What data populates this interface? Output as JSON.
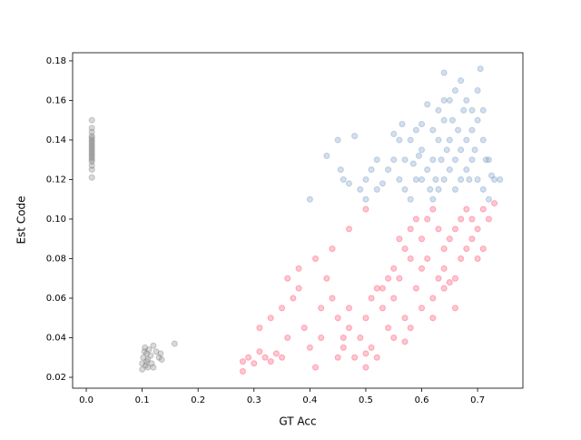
{
  "chart_data": {
    "type": "scatter",
    "xlabel": "GT Acc",
    "ylabel": "Est Code",
    "xlim": [
      -0.0244,
      0.781
    ],
    "ylim": [
      0.0145,
      0.1841
    ],
    "xticks": [
      {
        "value": 0,
        "label": "0.0"
      },
      0.1,
      0.2,
      0.3,
      0.4,
      0.5,
      0.6,
      0.7
    ],
    "yticks": [
      0.02,
      0.04,
      0.06,
      0.08,
      {
        "value": 0.1,
        "label": "0.10"
      },
      0.12,
      0.14,
      0.16,
      0.18
    ],
    "series": [
      {
        "color": "#808080",
        "x": [
          0.01,
          0.01,
          0.01,
          0.01,
          0.01,
          0.01,
          0.01,
          0.01,
          0.01,
          0.01,
          0.01,
          0.01,
          0.01,
          0.01,
          0.01,
          0.01,
          0.01,
          0.01,
          0.01,
          0.01,
          0.1,
          0.1,
          0.102,
          0.104,
          0.105,
          0.106,
          0.108,
          0.11,
          0.11,
          0.112,
          0.115,
          0.117,
          0.12,
          0.125,
          0.13,
          0.133,
          0.135,
          0.12,
          0.108,
          0.158
        ],
        "values": [
          0.121,
          0.125,
          0.127,
          0.129,
          0.13,
          0.131,
          0.132,
          0.133,
          0.134,
          0.135,
          0.136,
          0.137,
          0.138,
          0.139,
          0.14,
          0.141,
          0.142,
          0.144,
          0.146,
          0.15,
          0.024,
          0.027,
          0.03,
          0.033,
          0.035,
          0.026,
          0.032,
          0.029,
          0.025,
          0.034,
          0.031,
          0.027,
          0.036,
          0.033,
          0.03,
          0.032,
          0.029,
          0.025,
          0.028,
          0.037
        ]
      },
      {
        "color": "#6f96c5",
        "x": [
          0.62,
          0.63,
          0.64,
          0.65,
          0.66,
          0.67,
          0.68,
          0.69,
          0.7,
          0.71,
          0.62,
          0.63,
          0.64,
          0.65,
          0.66,
          0.67,
          0.68,
          0.69,
          0.7,
          0.71,
          0.62,
          0.63,
          0.64,
          0.65,
          0.66,
          0.67,
          0.68,
          0.69,
          0.7,
          0.71,
          0.72,
          0.72,
          0.73,
          0.74,
          0.705,
          0.64,
          0.61,
          0.6,
          0.6,
          0.61,
          0.58,
          0.57,
          0.56,
          0.57,
          0.58,
          0.59,
          0.55,
          0.56,
          0.59,
          0.6,
          0.5,
          0.51,
          0.52,
          0.5,
          0.53,
          0.49,
          0.54,
          0.52,
          0.46,
          0.43,
          0.45,
          0.47,
          0.48,
          0.4,
          0.455,
          0.55,
          0.565,
          0.655,
          0.665,
          0.675,
          0.685,
          0.695,
          0.715,
          0.725,
          0.615,
          0.625,
          0.635,
          0.645,
          0.585,
          0.595
        ],
        "values": [
          0.11,
          0.115,
          0.12,
          0.125,
          0.13,
          0.135,
          0.14,
          0.145,
          0.15,
          0.155,
          0.13,
          0.14,
          0.15,
          0.16,
          0.165,
          0.17,
          0.16,
          0.155,
          0.165,
          0.14,
          0.145,
          0.155,
          0.16,
          0.14,
          0.115,
          0.12,
          0.125,
          0.13,
          0.12,
          0.115,
          0.11,
          0.13,
          0.12,
          0.12,
          0.176,
          0.174,
          0.158,
          0.135,
          0.12,
          0.125,
          0.14,
          0.13,
          0.12,
          0.115,
          0.11,
          0.12,
          0.13,
          0.14,
          0.145,
          0.148,
          0.12,
          0.125,
          0.115,
          0.11,
          0.118,
          0.115,
          0.125,
          0.13,
          0.12,
          0.132,
          0.14,
          0.118,
          0.142,
          0.11,
          0.125,
          0.143,
          0.148,
          0.15,
          0.145,
          0.155,
          0.12,
          0.135,
          0.13,
          0.122,
          0.115,
          0.12,
          0.13,
          0.135,
          0.128,
          0.132
        ]
      },
      {
        "color": "#ff4466",
        "x": [
          0.28,
          0.28,
          0.29,
          0.3,
          0.31,
          0.32,
          0.33,
          0.34,
          0.35,
          0.36,
          0.31,
          0.33,
          0.35,
          0.37,
          0.38,
          0.36,
          0.39,
          0.4,
          0.41,
          0.42,
          0.41,
          0.43,
          0.44,
          0.45,
          0.45,
          0.46,
          0.47,
          0.47,
          0.46,
          0.48,
          0.5,
          0.5,
          0.51,
          0.52,
          0.49,
          0.5,
          0.51,
          0.52,
          0.53,
          0.54,
          0.55,
          0.55,
          0.56,
          0.57,
          0.58,
          0.59,
          0.6,
          0.61,
          0.62,
          0.63,
          0.64,
          0.65,
          0.66,
          0.67,
          0.68,
          0.69,
          0.7,
          0.71,
          0.72,
          0.73,
          0.6,
          0.61,
          0.62,
          0.63,
          0.64,
          0.65,
          0.66,
          0.67,
          0.68,
          0.69,
          0.7,
          0.71,
          0.58,
          0.57,
          0.56,
          0.55,
          0.54,
          0.53,
          0.59,
          0.58,
          0.6,
          0.62,
          0.64,
          0.66,
          0.57,
          0.47,
          0.44,
          0.5,
          0.42,
          0.38
        ],
        "values": [
          0.023,
          0.028,
          0.03,
          0.027,
          0.033,
          0.03,
          0.028,
          0.032,
          0.03,
          0.04,
          0.045,
          0.05,
          0.055,
          0.06,
          0.065,
          0.07,
          0.045,
          0.035,
          0.025,
          0.04,
          0.08,
          0.07,
          0.06,
          0.05,
          0.03,
          0.035,
          0.045,
          0.055,
          0.04,
          0.03,
          0.025,
          0.032,
          0.035,
          0.03,
          0.04,
          0.05,
          0.06,
          0.065,
          0.055,
          0.045,
          0.04,
          0.06,
          0.07,
          0.05,
          0.045,
          0.065,
          0.075,
          0.08,
          0.06,
          0.07,
          0.085,
          0.09,
          0.095,
          0.1,
          0.105,
          0.1,
          0.095,
          0.105,
          0.1,
          0.108,
          0.09,
          0.1,
          0.105,
          0.095,
          0.075,
          0.068,
          0.07,
          0.08,
          0.085,
          0.09,
          0.08,
          0.085,
          0.08,
          0.085,
          0.09,
          0.075,
          0.07,
          0.065,
          0.1,
          0.095,
          0.055,
          0.05,
          0.065,
          0.055,
          0.038,
          0.095,
          0.085,
          0.105,
          0.055,
          0.075
        ]
      }
    ]
  }
}
